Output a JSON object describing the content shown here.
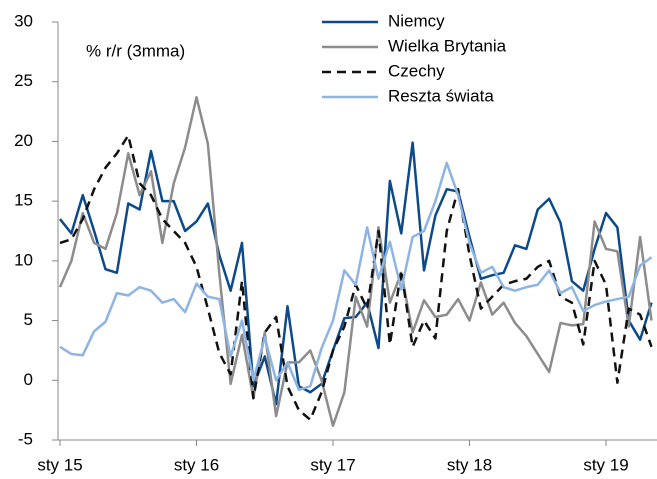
{
  "chart_data": {
    "type": "line",
    "subtitle": "% r/r (3mma)",
    "categories": [
      "sty 15",
      null,
      null,
      null,
      null,
      null,
      null,
      null,
      null,
      null,
      null,
      null,
      "sty 16",
      null,
      null,
      null,
      null,
      null,
      null,
      null,
      null,
      null,
      null,
      null,
      "sty 17",
      null,
      null,
      null,
      null,
      null,
      null,
      null,
      null,
      null,
      null,
      null,
      "sty 18",
      null,
      null,
      null,
      null,
      null,
      null,
      null,
      null,
      null,
      null,
      null,
      "sty 19",
      null,
      null,
      null,
      null
    ],
    "ylim": [
      -5,
      30
    ],
    "yticks": [
      -5,
      0,
      5,
      10,
      15,
      20,
      25,
      30
    ],
    "legend": "top-right",
    "series": [
      {
        "name": "Niemcy",
        "color": "#0d4a8c",
        "dash": false,
        "values": [
          13.5,
          12.3,
          15.5,
          12.5,
          9.3,
          9,
          14.8,
          14.3,
          19.2,
          15,
          15,
          12.5,
          13.3,
          14.8,
          10.5,
          7.5,
          11.5,
          -0.5,
          2,
          -2,
          6.2,
          -0.5,
          -1,
          -0.3,
          2.5,
          5.2,
          5.3,
          6.5,
          2.7,
          16.7,
          12.3,
          19.9,
          9.2,
          13.8,
          16,
          15.8,
          12,
          8.5,
          8.8,
          9,
          11.3,
          11,
          14.3,
          15.2,
          13.2,
          8.3,
          7.5,
          11,
          14,
          12.8,
          5,
          3.4,
          6.5
        ]
      },
      {
        "name": "Wielka Brytania",
        "color": "#8c8c8c",
        "dash": false,
        "values": [
          7.8,
          10,
          14,
          11.5,
          11,
          14,
          19,
          15.5,
          17.5,
          11.5,
          16.5,
          19.5,
          23.7,
          19.8,
          9,
          -0.3,
          3.8,
          -1.5,
          4,
          -3,
          1.5,
          1.5,
          2.5,
          0,
          -3.8,
          -1,
          7,
          4.5,
          12.8,
          6.5,
          9,
          4,
          6.7,
          5.3,
          5.5,
          6.8,
          5,
          8.2,
          5.5,
          6.5,
          4.8,
          3.7,
          2.2,
          0.7,
          4.8,
          4.6,
          4.7,
          13.3,
          11,
          10.8,
          4.5,
          12,
          5
        ]
      },
      {
        "name": "Czechy",
        "color": "#111111",
        "dash": true,
        "values": [
          11.5,
          11.8,
          13.5,
          16,
          17.8,
          19,
          20.5,
          16.5,
          15.5,
          13.5,
          12.5,
          11.5,
          9.5,
          6,
          2.3,
          0.5,
          8.3,
          -1.5,
          4,
          5.3,
          -0.5,
          -2.5,
          -3.3,
          -1,
          2.5,
          4.5,
          8,
          6,
          12.5,
          3,
          9.2,
          2.8,
          5,
          3.5,
          12.5,
          16,
          10.5,
          6,
          7,
          8,
          8.3,
          8.5,
          9.5,
          10,
          7,
          6.5,
          3,
          10,
          8,
          -0.2,
          6,
          5.5,
          2.8
        ]
      },
      {
        "name": "Reszta świata",
        "color": "#8eb4e3",
        "dash": false,
        "values": [
          2.8,
          2.2,
          2.1,
          4.1,
          4.9,
          7.3,
          7.1,
          7.8,
          7.5,
          6.5,
          6.8,
          5.7,
          8.1,
          7,
          6.8,
          2,
          5,
          0,
          3.6,
          0,
          1.5,
          -0.8,
          -0.5,
          2.7,
          5,
          9.2,
          8,
          12.8,
          8.5,
          11.6,
          7.6,
          12,
          12.5,
          15,
          18.2,
          15.5,
          11.5,
          9,
          9.5,
          7.8,
          7.5,
          7.8,
          8,
          9.2,
          7.3,
          7.8,
          5.8,
          6.3,
          6.6,
          6.8,
          7,
          9.6,
          10.3
        ]
      }
    ]
  }
}
